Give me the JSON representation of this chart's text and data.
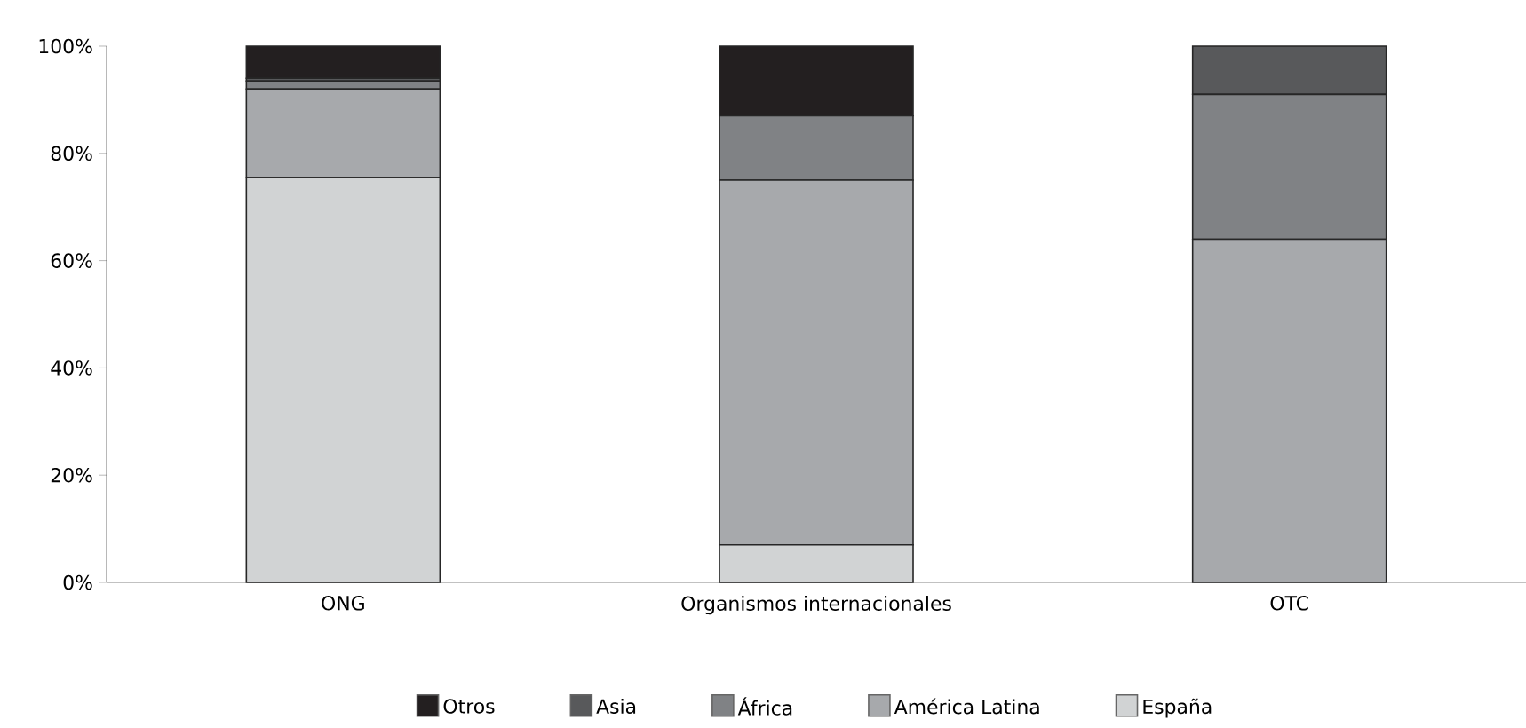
{
  "chart_data": {
    "type": "bar",
    "stacked": true,
    "categories": [
      "ONG",
      "Organismos internacionales",
      "OTC"
    ],
    "series": [
      {
        "name": "España",
        "color": "#d1d3d4",
        "values": [
          75.5,
          7,
          0
        ]
      },
      {
        "name": "América Latina",
        "color": "#a7a9ac",
        "values": [
          16.5,
          68,
          64
        ]
      },
      {
        "name": "África",
        "color": "#808285",
        "values": [
          1.5,
          12,
          27
        ]
      },
      {
        "name": "Asia",
        "color": "#58595b",
        "values": [
          0.5,
          0,
          9
        ]
      },
      {
        "name": "Otros",
        "color": "#231f20",
        "values": [
          6,
          13,
          0
        ]
      }
    ],
    "ylim": [
      0,
      100
    ],
    "yticks": [
      {
        "value": 0,
        "label": "0%"
      },
      {
        "value": 20,
        "label": "20%"
      },
      {
        "value": 40,
        "label": "40%"
      },
      {
        "value": 60,
        "label": "60%"
      },
      {
        "value": 80,
        "label": "80%"
      },
      {
        "value": 100,
        "label": "100%"
      }
    ],
    "grid": false,
    "legend": "bottom"
  }
}
